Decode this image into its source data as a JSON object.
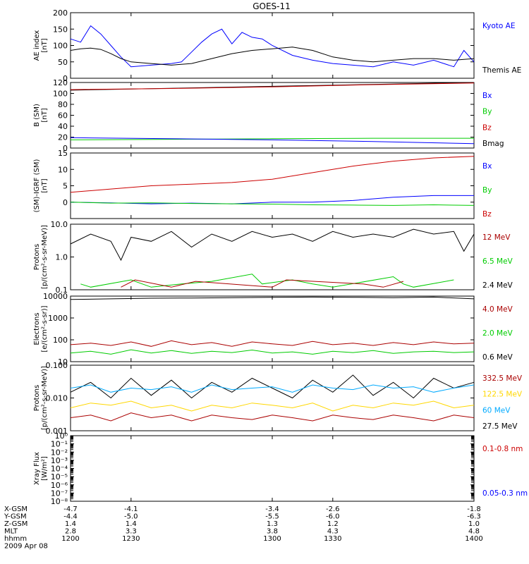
{
  "title": "GOES-11",
  "x_axis": {
    "ticks": [
      "1200",
      "1230",
      "1300",
      "1330",
      "1400"
    ],
    "range": [
      1200,
      1400
    ]
  },
  "orbit_table": {
    "rows": [
      {
        "label": "X-GSM",
        "values": [
          "-4.7",
          "-4.1",
          "-3.4",
          "-2.6",
          "-1.8"
        ]
      },
      {
        "label": "Y-GSM",
        "values": [
          "-4.4",
          "-5.0",
          "-5.5",
          "-6.0",
          "-6.3"
        ]
      },
      {
        "label": "Z-GSM",
        "values": [
          "1.4",
          "1.4",
          "1.3",
          "1.2",
          "1.0"
        ]
      },
      {
        "label": "MLT",
        "values": [
          "2.8",
          "3.3",
          "3.8",
          "4.3",
          "4.8"
        ]
      },
      {
        "label": "hhmm",
        "values": [
          "1200",
          "1230",
          "1300",
          "1330",
          "1400"
        ]
      }
    ],
    "date": "2009 Apr 08"
  },
  "colors": {
    "black": "#000000",
    "blue": "#0000ff",
    "green": "#00cc00",
    "red": "#cc0000",
    "darkred": "#aa0000",
    "cyan": "#00aaff",
    "yellow": "#ffd700"
  },
  "chart_data": [
    {
      "type": "line",
      "ylabel": "AE index\n[nT]",
      "scale": "linear",
      "ylim": [
        0,
        200
      ],
      "yticks": [
        "0",
        "50",
        "100",
        "150",
        "200"
      ],
      "legend": [
        {
          "name": "Kyoto AE",
          "color": "#0000ff"
        },
        {
          "name": "Themis AE",
          "color": "#000000"
        }
      ],
      "series": [
        {
          "name": "Kyoto AE",
          "color": "#0000ff",
          "x": [
            1200,
            1205,
            1210,
            1215,
            1220,
            1225,
            1230,
            1240,
            1250,
            1255,
            1260,
            1265,
            1270,
            1275,
            1280,
            1285,
            1290,
            1295,
            1300,
            1310,
            1320,
            1330,
            1340,
            1350,
            1360,
            1370,
            1380,
            1390,
            1395,
            1400
          ],
          "y": [
            120,
            110,
            160,
            135,
            100,
            65,
            35,
            40,
            45,
            50,
            80,
            110,
            135,
            150,
            105,
            140,
            125,
            120,
            100,
            70,
            55,
            45,
            40,
            35,
            50,
            40,
            55,
            35,
            85,
            50
          ]
        },
        {
          "name": "Themis AE",
          "color": "#000000",
          "x": [
            1200,
            1205,
            1210,
            1215,
            1220,
            1225,
            1230,
            1240,
            1250,
            1260,
            1270,
            1280,
            1290,
            1300,
            1310,
            1320,
            1330,
            1340,
            1350,
            1360,
            1370,
            1380,
            1390,
            1400
          ],
          "y": [
            85,
            90,
            92,
            88,
            75,
            60,
            50,
            45,
            40,
            45,
            60,
            75,
            85,
            90,
            95,
            85,
            65,
            55,
            50,
            55,
            60,
            60,
            55,
            60
          ]
        }
      ]
    },
    {
      "type": "line",
      "ylabel": "B (SM)\n[nT]",
      "scale": "linear",
      "ylim": [
        0,
        120
      ],
      "yticks": [
        "0",
        "20",
        "40",
        "60",
        "80",
        "100",
        "120"
      ],
      "legend": [
        {
          "name": "Bx",
          "color": "#0000ff"
        },
        {
          "name": "By",
          "color": "#00cc00"
        },
        {
          "name": "Bz",
          "color": "#cc0000"
        },
        {
          "name": "Bmag",
          "color": "#000000"
        }
      ],
      "series": [
        {
          "name": "Bmag",
          "color": "#000000",
          "x": [
            1200,
            1400
          ],
          "y": [
            106,
            120
          ]
        },
        {
          "name": "Bz",
          "color": "#cc0000",
          "x": [
            1200,
            1250,
            1300,
            1350,
            1400
          ],
          "y": [
            107,
            109,
            112,
            116,
            119
          ]
        },
        {
          "name": "By",
          "color": "#00cc00",
          "x": [
            1200,
            1250,
            1300,
            1350,
            1400
          ],
          "y": [
            15,
            16,
            17,
            18,
            18
          ]
        },
        {
          "name": "Bx",
          "color": "#0000ff",
          "x": [
            1200,
            1250,
            1300,
            1350,
            1400
          ],
          "y": [
            19,
            17,
            15,
            12,
            8
          ]
        }
      ]
    },
    {
      "type": "line",
      "ylabel": "(SM)-IGRF (SM)\n[nT]",
      "scale": "linear",
      "ylim": [
        -5,
        15
      ],
      "yticks": [
        "0",
        "5",
        "10",
        "15"
      ],
      "legend": [
        {
          "name": "Bx",
          "color": "#0000ff"
        },
        {
          "name": "By",
          "color": "#00cc00"
        },
        {
          "name": "Bz",
          "color": "#cc0000"
        }
      ],
      "series": [
        {
          "name": "Bz",
          "color": "#cc0000",
          "x": [
            1200,
            1220,
            1240,
            1260,
            1280,
            1300,
            1320,
            1340,
            1360,
            1380,
            1400
          ],
          "y": [
            3,
            4,
            5,
            5.5,
            6,
            7,
            9,
            11,
            12.5,
            13.5,
            14
          ]
        },
        {
          "name": "Bx",
          "color": "#0000ff",
          "x": [
            1200,
            1220,
            1240,
            1260,
            1280,
            1300,
            1320,
            1340,
            1360,
            1380,
            1400
          ],
          "y": [
            0,
            -0.2,
            -0.5,
            -0.3,
            -0.5,
            0,
            0,
            0.5,
            1.5,
            2,
            2
          ]
        },
        {
          "name": "By",
          "color": "#00cc00",
          "x": [
            1200,
            1220,
            1240,
            1260,
            1280,
            1300,
            1320,
            1340,
            1360,
            1380,
            1400
          ],
          "y": [
            0,
            -0.3,
            -0.2,
            -0.4,
            -0.5,
            -0.6,
            -0.8,
            -0.9,
            -1,
            -0.8,
            -1
          ]
        }
      ]
    },
    {
      "type": "line",
      "ylabel": "Protons\n[p/(cm²-s-sr-MeV)]",
      "scale": "log",
      "ylim": [
        0.1,
        10
      ],
      "yticks": [
        "0.1",
        "1.0",
        "10.0"
      ],
      "legend": [
        {
          "name": "12 MeV",
          "color": "#aa0000"
        },
        {
          "name": "6.5 MeV",
          "color": "#00cc00"
        },
        {
          "name": "2.4 MeV",
          "color": "#000000"
        }
      ],
      "series": [
        {
          "name": "2.4 MeV",
          "color": "#000000",
          "x": [
            1200,
            1210,
            1220,
            1225,
            1230,
            1240,
            1250,
            1260,
            1270,
            1280,
            1290,
            1300,
            1310,
            1320,
            1330,
            1340,
            1350,
            1360,
            1370,
            1380,
            1390,
            1395,
            1400
          ],
          "y": [
            2.5,
            5,
            3,
            0.8,
            4,
            3,
            6,
            2,
            5,
            3,
            6,
            4,
            5,
            3,
            6,
            4,
            5,
            4,
            7,
            5,
            6,
            1.5,
            5
          ]
        },
        {
          "name": "6.5 MeV",
          "color": "#00cc00",
          "x": [
            1205,
            1210,
            1230,
            1240,
            1255,
            1270,
            1290,
            1295,
            1310,
            1320,
            1330,
            1360,
            1365,
            1370,
            1390
          ],
          "y": [
            0.15,
            0.12,
            0.2,
            0.12,
            0.15,
            0.18,
            0.3,
            0.15,
            0.2,
            0.15,
            0.12,
            0.25,
            0.15,
            0.12,
            0.2
          ]
        },
        {
          "name": "12 MeV",
          "color": "#aa0000",
          "x": [
            1225,
            1232,
            1250,
            1262,
            1300,
            1307,
            1345,
            1355,
            1365
          ],
          "y": [
            0.12,
            0.2,
            0.12,
            0.18,
            0.12,
            0.2,
            0.15,
            0.12,
            0.18
          ]
        }
      ]
    },
    {
      "type": "line",
      "ylabel": "Electrons\n[e/(cm²-s-sr)]",
      "scale": "log",
      "ylim": [
        10,
        10000
      ],
      "yticks": [
        "10",
        "100",
        "1000",
        "10000"
      ],
      "legend": [
        {
          "name": "4.0 MeV",
          "color": "#aa0000"
        },
        {
          "name": "2.0 MeV",
          "color": "#00cc00"
        },
        {
          "name": "0.6 MeV",
          "color": "#000000"
        }
      ],
      "series": [
        {
          "name": "0.6 MeV",
          "color": "#000000",
          "x": [
            1200,
            1220,
            1240,
            1260,
            1280,
            1300,
            1320,
            1340,
            1360,
            1380,
            1400
          ],
          "y": [
            7000,
            7500,
            8000,
            8200,
            8500,
            8800,
            9000,
            8800,
            8500,
            9000,
            7500
          ]
        },
        {
          "name": "4.0 MeV",
          "color": "#aa0000",
          "x": [
            1200,
            1210,
            1220,
            1230,
            1240,
            1250,
            1260,
            1270,
            1280,
            1290,
            1300,
            1310,
            1320,
            1330,
            1340,
            1350,
            1360,
            1370,
            1380,
            1390,
            1400
          ],
          "y": [
            60,
            70,
            55,
            80,
            50,
            90,
            60,
            75,
            50,
            80,
            65,
            55,
            85,
            60,
            70,
            55,
            75,
            60,
            80,
            65,
            70
          ]
        },
        {
          "name": "2.0 MeV",
          "color": "#00cc00",
          "x": [
            1200,
            1210,
            1220,
            1230,
            1240,
            1250,
            1260,
            1270,
            1280,
            1290,
            1300,
            1310,
            1320,
            1330,
            1340,
            1350,
            1360,
            1370,
            1380,
            1390,
            1400
          ],
          "y": [
            25,
            30,
            22,
            35,
            25,
            32,
            24,
            30,
            26,
            34,
            25,
            28,
            22,
            30,
            26,
            32,
            24,
            28,
            30,
            26,
            28
          ]
        }
      ]
    },
    {
      "type": "line",
      "ylabel": "Protons\n[p/(cm²-s-sr-MeV)]",
      "scale": "log",
      "ylim": [
        0.001,
        0.1
      ],
      "yticks": [
        "0.001",
        "0.010",
        "0.100"
      ],
      "legend": [
        {
          "name": "332.5 MeV",
          "color": "#aa0000"
        },
        {
          "name": "122.5 MeV",
          "color": "#ffd700"
        },
        {
          "name": "60 MeV",
          "color": "#00aaff"
        },
        {
          "name": "27.5 MeV",
          "color": "#000000"
        }
      ],
      "series": [
        {
          "name": "27.5 MeV",
          "color": "#000000",
          "x": [
            1200,
            1210,
            1220,
            1230,
            1240,
            1250,
            1260,
            1270,
            1280,
            1290,
            1300,
            1310,
            1320,
            1330,
            1340,
            1350,
            1360,
            1370,
            1380,
            1390,
            1400
          ],
          "y": [
            0.015,
            0.03,
            0.01,
            0.04,
            0.012,
            0.035,
            0.01,
            0.03,
            0.015,
            0.04,
            0.02,
            0.01,
            0.035,
            0.015,
            0.05,
            0.012,
            0.03,
            0.01,
            0.04,
            0.02,
            0.03
          ]
        },
        {
          "name": "60 MeV",
          "color": "#00aaff",
          "x": [
            1200,
            1210,
            1220,
            1230,
            1240,
            1250,
            1260,
            1270,
            1280,
            1290,
            1300,
            1310,
            1320,
            1330,
            1340,
            1350,
            1360,
            1370,
            1380,
            1390,
            1400
          ],
          "y": [
            0.02,
            0.025,
            0.015,
            0.02,
            0.018,
            0.022,
            0.015,
            0.025,
            0.018,
            0.02,
            0.022,
            0.015,
            0.025,
            0.02,
            0.018,
            0.025,
            0.02,
            0.022,
            0.015,
            0.02,
            0.025
          ]
        },
        {
          "name": "122.5 MeV",
          "color": "#ffd700",
          "x": [
            1200,
            1210,
            1220,
            1230,
            1240,
            1250,
            1260,
            1270,
            1280,
            1290,
            1300,
            1310,
            1320,
            1330,
            1340,
            1350,
            1360,
            1370,
            1380,
            1390,
            1400
          ],
          "y": [
            0.005,
            0.007,
            0.006,
            0.008,
            0.005,
            0.006,
            0.004,
            0.006,
            0.005,
            0.007,
            0.006,
            0.005,
            0.007,
            0.004,
            0.006,
            0.005,
            0.007,
            0.006,
            0.008,
            0.005,
            0.006
          ]
        },
        {
          "name": "332.5 MeV",
          "color": "#aa0000",
          "x": [
            1200,
            1210,
            1220,
            1230,
            1240,
            1250,
            1260,
            1270,
            1280,
            1290,
            1300,
            1310,
            1320,
            1330,
            1340,
            1350,
            1360,
            1370,
            1380,
            1390,
            1400
          ],
          "y": [
            0.0025,
            0.003,
            0.002,
            0.0035,
            0.0025,
            0.003,
            0.002,
            0.003,
            0.0025,
            0.0022,
            0.003,
            0.0025,
            0.002,
            0.003,
            0.0025,
            0.0022,
            0.003,
            0.0025,
            0.002,
            0.003,
            0.0025
          ]
        }
      ]
    },
    {
      "type": "line",
      "ylabel": "Xray Flux\n[W/m²]",
      "scale": "log",
      "ylim": [
        1e-09,
        1
      ],
      "yticks": [
        "10⁻⁸",
        "10⁻⁷",
        "10⁻⁶",
        "10⁻⁵",
        "10⁻⁴",
        "10⁻³",
        "10⁻²",
        "10⁻¹",
        "10⁰"
      ],
      "legend": [
        {
          "name": "0.1-0.8 nm",
          "color": "#cc0000"
        },
        {
          "name": "0.05-0.3 nm",
          "color": "#0000ff"
        }
      ],
      "series": []
    }
  ]
}
